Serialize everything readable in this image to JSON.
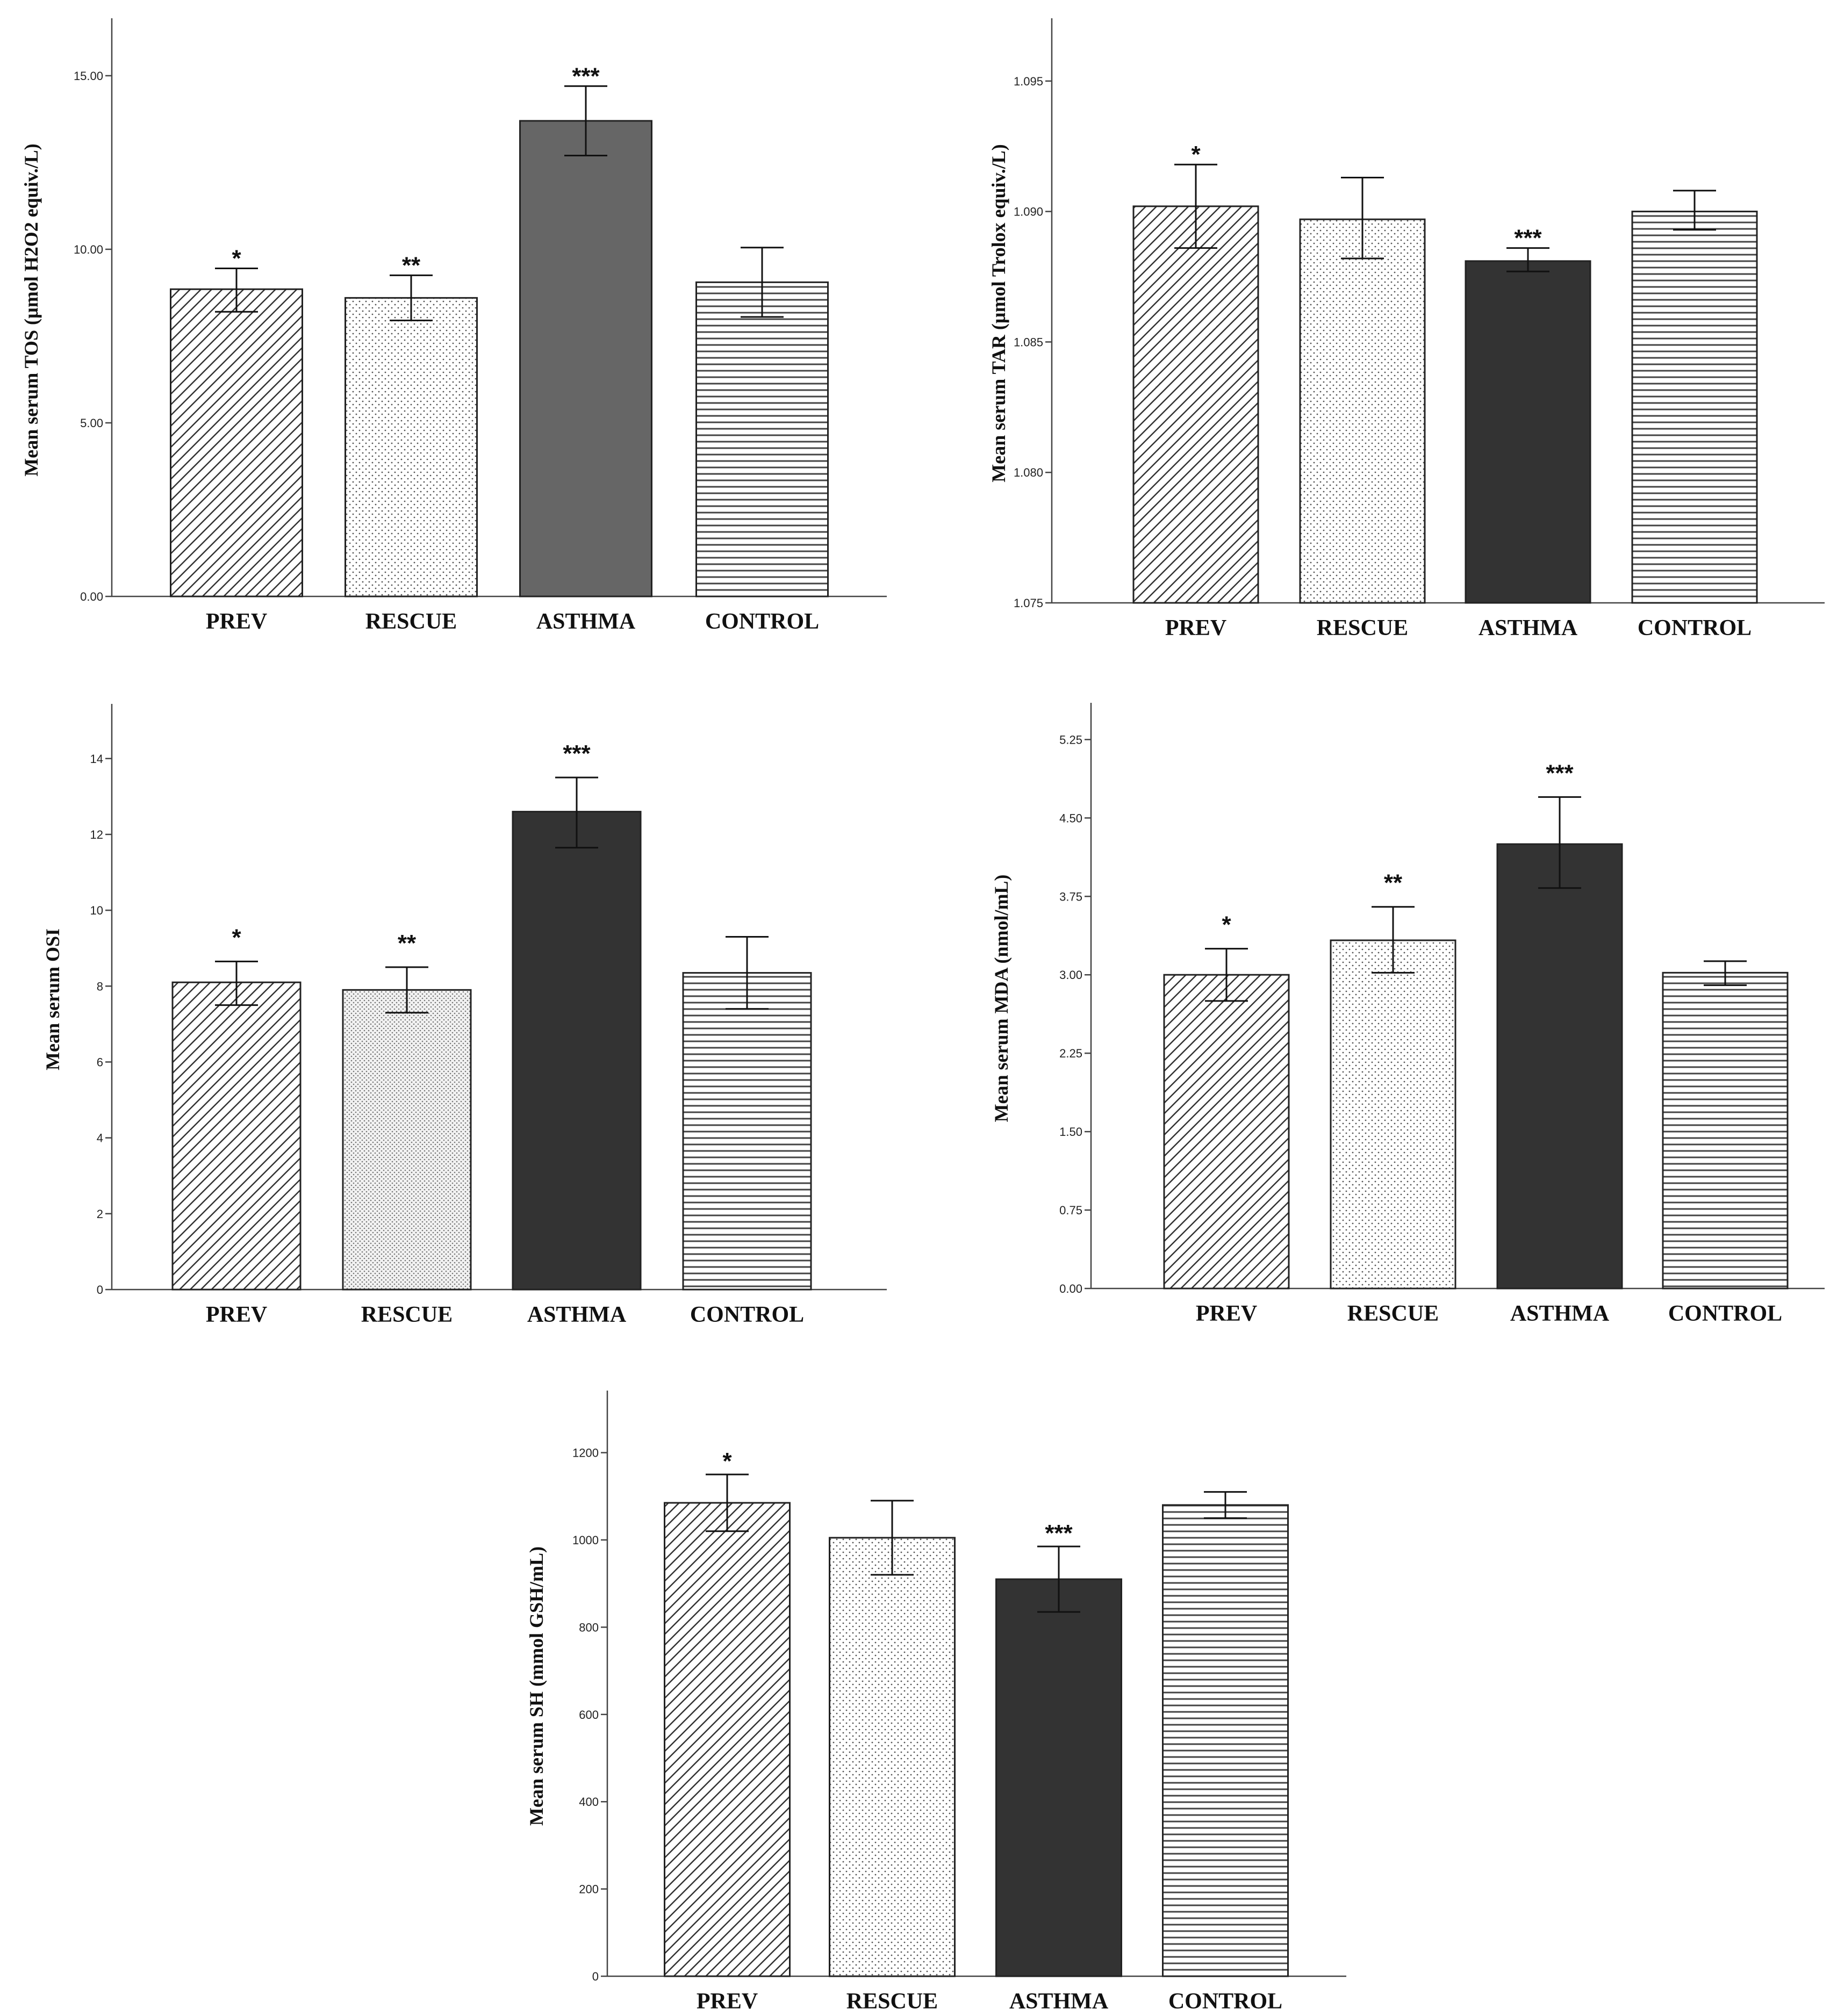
{
  "colors": {
    "bar_stroke": "#222222",
    "pattern_ink": "#333333",
    "asthma_tos_fill": "#666666",
    "asthma_dark_fill": "#333333",
    "axis": "#444444"
  },
  "chart_data": [
    {
      "id": "tos",
      "type": "bar",
      "title": "",
      "xlabel": "",
      "ylabel": "Mean serum TOS (µmol H2O2 equiv./L)",
      "ylim": [
        0,
        16.5
      ],
      "yticks": [
        0,
        5,
        10,
        15
      ],
      "ytick_labels": [
        "0.00",
        "5.00",
        "10.00",
        "15.00"
      ],
      "categories": [
        "PREV",
        "RESCUE",
        "ASTHMA",
        "CONTROL"
      ],
      "values": [
        8.85,
        8.6,
        13.7,
        9.05
      ],
      "error_low": [
        8.2,
        7.95,
        12.7,
        8.05
      ],
      "error_high": [
        9.45,
        9.25,
        14.7,
        10.05
      ],
      "significance": [
        "*",
        "**",
        "***",
        ""
      ],
      "patterns": [
        "diag",
        "dots",
        "solid-mid",
        "hlines"
      ]
    },
    {
      "id": "tar",
      "type": "bar",
      "title": "",
      "xlabel": "",
      "ylabel": "Mean serum TAR (µmol Trolox equiv./L)",
      "ylim": [
        1.075,
        1.0972
      ],
      "yticks": [
        1.075,
        1.08,
        1.085,
        1.09,
        1.095
      ],
      "ytick_labels": [
        "1.075",
        "1.080",
        "1.085",
        "1.090",
        "1.095"
      ],
      "categories": [
        "PREV",
        "RESCUE",
        "ASTHMA",
        "CONTROL"
      ],
      "values": [
        1.0902,
        1.0897,
        1.0881,
        1.09
      ],
      "error_low": [
        1.0886,
        1.0882,
        1.0877,
        1.0893
      ],
      "error_high": [
        1.0918,
        1.0913,
        1.0886,
        1.0908
      ],
      "significance": [
        "*",
        "",
        "***",
        ""
      ],
      "patterns": [
        "diag",
        "dots",
        "solid-dark",
        "hlines"
      ]
    },
    {
      "id": "osi",
      "type": "bar",
      "title": "",
      "xlabel": "",
      "ylabel": "Mean serum OSI",
      "ylim": [
        0,
        15.3
      ],
      "yticks": [
        0,
        2,
        4,
        6,
        8,
        10,
        12,
        14
      ],
      "ytick_labels": [
        "0",
        "2",
        "4",
        "6",
        "8",
        "10",
        "12",
        "14"
      ],
      "categories": [
        "PREV",
        "RESCUE",
        "ASTHMA",
        "CONTROL"
      ],
      "values": [
        8.1,
        7.9,
        12.6,
        8.35
      ],
      "error_low": [
        7.5,
        7.3,
        11.65,
        7.4
      ],
      "error_high": [
        8.65,
        8.5,
        13.5,
        9.3
      ],
      "significance": [
        "*",
        "**",
        "***",
        ""
      ],
      "patterns": [
        "diag",
        "dots-dense",
        "solid-dark",
        "hlines"
      ]
    },
    {
      "id": "mda",
      "type": "bar",
      "title": "",
      "xlabel": "",
      "ylabel": "Mean serum MDA (nmol/mL)",
      "ylim": [
        0,
        5.55
      ],
      "yticks": [
        0,
        0.75,
        1.5,
        2.25,
        3,
        3.75,
        4.5,
        5.25
      ],
      "ytick_labels": [
        "0.00",
        "0.75",
        "1.50",
        "2.25",
        "3.00",
        "3.75",
        "4.50",
        "5.25"
      ],
      "categories": [
        "PREV",
        "RESCUE",
        "ASTHMA",
        "CONTROL"
      ],
      "values": [
        3.0,
        3.33,
        4.25,
        3.02
      ],
      "error_low": [
        2.75,
        3.02,
        3.83,
        2.9
      ],
      "error_high": [
        3.25,
        3.65,
        4.7,
        3.13
      ],
      "significance": [
        "*",
        "**",
        "***",
        ""
      ],
      "patterns": [
        "diag",
        "dots",
        "solid-dark",
        "hlines"
      ]
    },
    {
      "id": "sh",
      "type": "bar",
      "title": "",
      "xlabel": "",
      "ylabel": "Mean serum SH (mmol GSH/mL)",
      "ylim": [
        0,
        1330
      ],
      "yticks": [
        0,
        200,
        400,
        600,
        800,
        1000,
        1200
      ],
      "ytick_labels": [
        "0",
        "200",
        "400",
        "600",
        "800",
        "1000",
        "1200"
      ],
      "categories": [
        "PREV",
        "RESCUE",
        "ASTHMA",
        "CONTROL"
      ],
      "values": [
        1085,
        1005,
        910,
        1080
      ],
      "error_low": [
        1020,
        920,
        835,
        1050
      ],
      "error_high": [
        1150,
        1090,
        985,
        1110
      ],
      "significance": [
        "*",
        "",
        "***",
        ""
      ],
      "patterns": [
        "diag",
        "dots",
        "solid-dark",
        "hlines"
      ]
    }
  ]
}
